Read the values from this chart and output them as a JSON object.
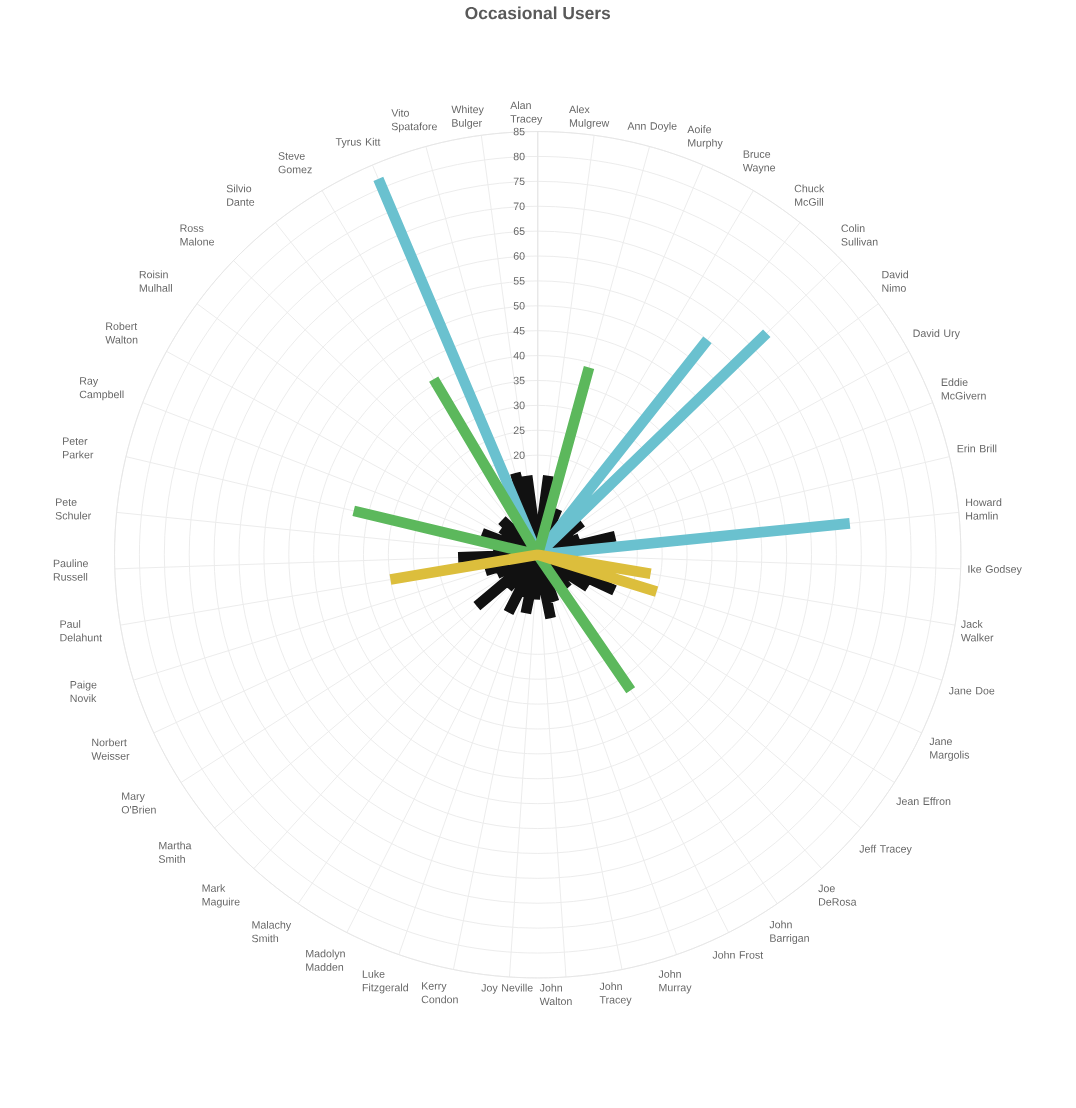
{
  "chart_data": {
    "type": "radar",
    "title": "Occasional Users",
    "categories": [
      "Alan Tracey",
      "Alex Mulgrew",
      "Ann Doyle",
      "Aoife Murphy",
      "Bruce Wayne",
      "Chuck McGill",
      "Colin Sullivan",
      "David Nimo",
      "David Ury",
      "Eddie McGivern",
      "Erin Brill",
      "Howard Hamlin",
      "Ike Godsey",
      "Jack Walker",
      "Jane Doe",
      "Jane Margolis",
      "Jean Effron",
      "Jeff Tracey",
      "Joe DeRosa",
      "John Barrigan",
      "John Frost",
      "John Murray",
      "John Tracey",
      "John Walton",
      "Joy Neville",
      "Kerry Condon",
      "Luke Fitzgerald",
      "Madolyn Madden",
      "Malachy Smith",
      "Mark Maguire",
      "Martha Smith",
      "Mary O'Brien",
      "Norbert Weisser",
      "Paige Novik",
      "Paul Delahunt",
      "Pauline Russell",
      "Pete Schuler",
      "Peter Parker",
      "Ray Campbell",
      "Robert Walton",
      "Roisin Mulhall",
      "Ross Malone",
      "Silvio Dante",
      "Steve Gomez",
      "Tyrus Kitt",
      "Vito Spatafore",
      "Whitey Bulger"
    ],
    "series": [
      {
        "type": "bar",
        "color": "#111111",
        "values": [
          8,
          16,
          null,
          10,
          7,
          null,
          null,
          11,
          7,
          9,
          16,
          null,
          8,
          null,
          null,
          17,
          12,
          8,
          9,
          null,
          7,
          10,
          13,
          7,
          9,
          12,
          9,
          13,
          8,
          9,
          16,
          8,
          9,
          11,
          null,
          16,
          9,
          null,
          12,
          8,
          9,
          10,
          8,
          null,
          null,
          17,
          16
        ]
      },
      {
        "type": "bar",
        "color": "#6ac1cf",
        "values": [
          null,
          null,
          null,
          null,
          null,
          55,
          64,
          null,
          null,
          null,
          null,
          63,
          null,
          null,
          null,
          null,
          null,
          null,
          null,
          null,
          null,
          null,
          null,
          null,
          null,
          null,
          null,
          null,
          null,
          null,
          null,
          null,
          null,
          null,
          null,
          null,
          null,
          null,
          null,
          null,
          null,
          null,
          null,
          null,
          82,
          null,
          null
        ]
      },
      {
        "type": "bar",
        "color": "#5cb85c",
        "values": [
          null,
          null,
          39,
          null,
          null,
          null,
          null,
          null,
          null,
          null,
          null,
          null,
          null,
          null,
          null,
          null,
          null,
          null,
          null,
          33,
          null,
          null,
          null,
          null,
          null,
          null,
          null,
          null,
          null,
          null,
          null,
          null,
          null,
          null,
          null,
          null,
          null,
          38,
          null,
          null,
          null,
          null,
          null,
          41,
          null,
          null,
          null
        ]
      },
      {
        "type": "bar",
        "color": "#dcbe3c",
        "values": [
          null,
          null,
          null,
          null,
          null,
          null,
          null,
          null,
          null,
          null,
          null,
          null,
          null,
          23,
          25,
          null,
          null,
          null,
          null,
          null,
          null,
          null,
          null,
          null,
          null,
          null,
          null,
          null,
          null,
          null,
          null,
          null,
          null,
          null,
          30,
          null,
          null,
          null,
          null,
          null,
          null,
          null,
          null,
          null,
          null,
          null,
          null
        ]
      }
    ],
    "ylim": [
      0,
      85
    ],
    "yticks": [
      20,
      25,
      30,
      35,
      40,
      45,
      50,
      55,
      60,
      65,
      70,
      75,
      80,
      85
    ],
    "grid": true
  }
}
